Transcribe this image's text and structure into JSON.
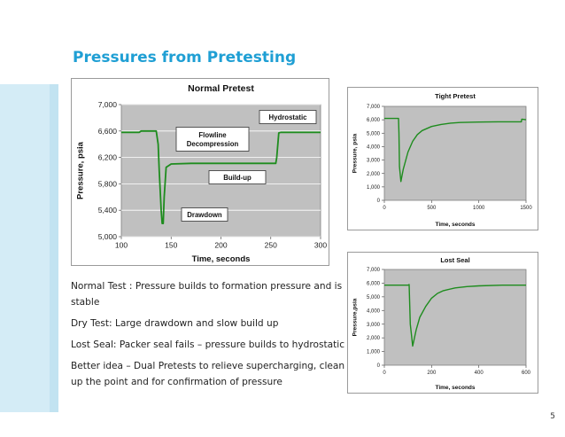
{
  "slide": {
    "title": "Pressures from Pretesting",
    "page_number": "5",
    "bullets": [
      "Normal Test : Pressure builds to formation pressure and is stable",
      "Dry Test: Large drawdown and slow build up",
      "Lost Seal: Packer seal fails – pressure builds to hydrostatic",
      "Better idea – Dual Pretests to relieve supercharging, clean up the point and for confirmation of pressure"
    ]
  },
  "chart_data": [
    {
      "type": "line",
      "title": "Normal Pretest",
      "xlabel": "Time, seconds",
      "ylabel": "Pressure, psia",
      "xlim": [
        100,
        300
      ],
      "ylim": [
        5000,
        7000
      ],
      "xticks": [
        "100",
        "150",
        "200",
        "250",
        "300"
      ],
      "yticks": [
        "5,000",
        "5,400",
        "5,800",
        "6,200",
        "6,600",
        "7,000"
      ],
      "grid": true,
      "line_color": "#1e8c1e",
      "series": [
        {
          "x": [
            100,
            118,
            120,
            135,
            137,
            138,
            139,
            140,
            141,
            142,
            143,
            145,
            150,
            170,
            190,
            210,
            230,
            255,
            256,
            258,
            260,
            300
          ],
          "y": [
            6580,
            6580,
            6600,
            6600,
            6400,
            6000,
            5700,
            5400,
            5200,
            5200,
            5600,
            6050,
            6100,
            6110,
            6110,
            6110,
            6110,
            6110,
            6200,
            6570,
            6580,
            6580
          ]
        }
      ],
      "annotations": [
        {
          "text": "Hydrostatic"
        },
        {
          "text": "Flowline Decompression"
        },
        {
          "text": "Build-up"
        },
        {
          "text": "Drawdown"
        }
      ]
    },
    {
      "type": "line",
      "title": "Tight Pretest",
      "xlabel": "Time, seconds",
      "ylabel": "Pressure, psia",
      "xlim": [
        0,
        1500
      ],
      "ylim": [
        0,
        7000
      ],
      "xticks": [
        "0",
        "500",
        "1000",
        "1500"
      ],
      "yticks": [
        "0",
        "1,000",
        "2,000",
        "3,000",
        "4,000",
        "5,000",
        "6,000",
        "7,000"
      ],
      "grid": false,
      "line_color": "#1e8c1e",
      "series": [
        {
          "x": [
            0,
            150,
            155,
            160,
            175,
            200,
            250,
            300,
            350,
            400,
            500,
            600,
            700,
            800,
            1000,
            1200,
            1400,
            1450,
            1455,
            1500
          ],
          "y": [
            6100,
            6100,
            5000,
            2500,
            1400,
            2300,
            3600,
            4400,
            4900,
            5200,
            5500,
            5650,
            5750,
            5800,
            5830,
            5850,
            5850,
            5850,
            6050,
            6000
          ]
        }
      ]
    },
    {
      "type": "line",
      "title": "Lost Seal",
      "xlabel": "Time, seconds",
      "ylabel": "Pressure,psia",
      "xlim": [
        0,
        600
      ],
      "ylim": [
        0,
        7000
      ],
      "xticks": [
        "0",
        "200",
        "400",
        "600"
      ],
      "yticks": [
        "0",
        "1,000",
        "2,000",
        "3,000",
        "4,000",
        "5,000",
        "6,000",
        "7,000"
      ],
      "grid": false,
      "line_color": "#1e8c1e",
      "series": [
        {
          "x": [
            0,
            100,
            105,
            110,
            120,
            135,
            150,
            175,
            200,
            225,
            250,
            300,
            350,
            400,
            500,
            600
          ],
          "y": [
            5850,
            5850,
            5900,
            3000,
            1400,
            2600,
            3500,
            4300,
            4900,
            5250,
            5450,
            5650,
            5750,
            5800,
            5850,
            5850
          ]
        }
      ]
    }
  ]
}
